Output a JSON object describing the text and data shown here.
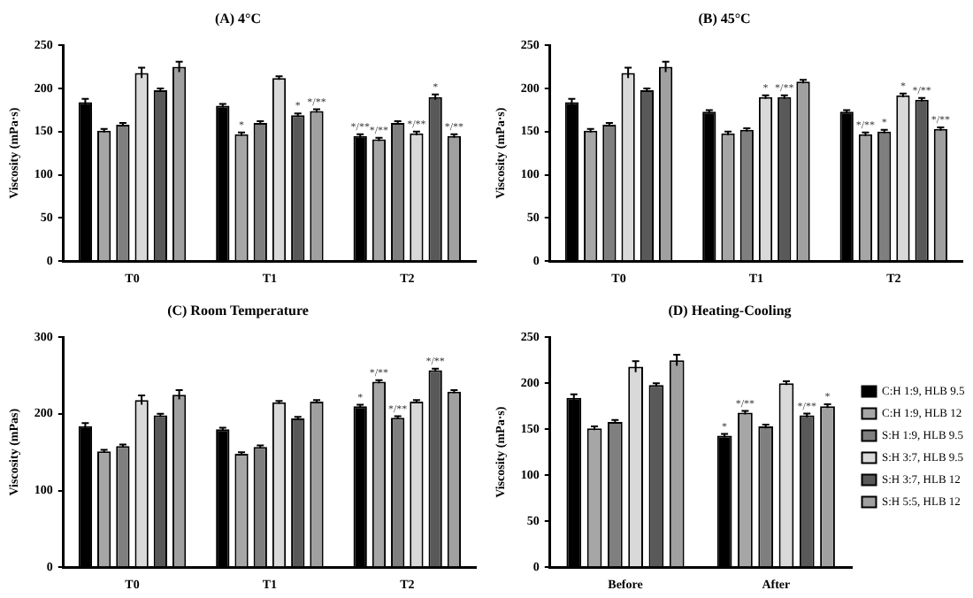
{
  "chart_data": [
    {
      "type": "bar",
      "title": "(A) 4°C",
      "ylabel": "Viscosity (mPa·s)",
      "categories": [
        "T0",
        "T1",
        "T2"
      ],
      "ylim": [
        0,
        250
      ],
      "yticks": [
        0,
        50,
        100,
        150,
        200,
        250
      ],
      "grid": false,
      "legend": false,
      "series": [
        {
          "color": "#000000",
          "values": [
            184,
            180,
            145
          ],
          "errors": [
            4,
            2,
            2
          ],
          "value_labels": [
            null,
            null,
            "*/**"
          ]
        },
        {
          "color": "#a6a6a6",
          "values": [
            151,
            147,
            141
          ],
          "errors": [
            2,
            2,
            2
          ],
          "value_labels": [
            null,
            "*",
            "*/**"
          ]
        },
        {
          "color": "#7f7f7f",
          "values": [
            158,
            160,
            160
          ],
          "errors": [
            2,
            2,
            2
          ],
          "value_labels": [
            null,
            null,
            null
          ]
        },
        {
          "color": "#d9d9d9",
          "values": [
            218,
            212,
            148
          ],
          "errors": [
            6,
            2,
            2
          ],
          "value_labels": [
            null,
            null,
            "*/**"
          ]
        },
        {
          "color": "#595959",
          "values": [
            198,
            169,
            190
          ],
          "errors": [
            2,
            2,
            3
          ],
          "value_labels": [
            null,
            "*",
            "*"
          ]
        },
        {
          "color": "#a0a0a0",
          "values": [
            225,
            174,
            145
          ],
          "errors": [
            6,
            2,
            2
          ],
          "value_labels": [
            null,
            "*/**",
            "*/**"
          ]
        }
      ]
    },
    {
      "type": "bar",
      "title": "(B) 45°C",
      "ylabel": "Viscosity (mPa·s)",
      "categories": [
        "T0",
        "T1",
        "T2"
      ],
      "ylim": [
        0,
        250
      ],
      "yticks": [
        0,
        50,
        100,
        150,
        200,
        250
      ],
      "grid": false,
      "legend": false,
      "series": [
        {
          "color": "#000000",
          "values": [
            184,
            173,
            173
          ],
          "errors": [
            4,
            2,
            2
          ],
          "value_labels": [
            null,
            null,
            null
          ]
        },
        {
          "color": "#a6a6a6",
          "values": [
            151,
            148,
            147
          ],
          "errors": [
            2,
            2,
            2
          ],
          "value_labels": [
            null,
            null,
            "*/**"
          ]
        },
        {
          "color": "#7f7f7f",
          "values": [
            158,
            152,
            150
          ],
          "errors": [
            2,
            2,
            2
          ],
          "value_labels": [
            null,
            null,
            "*"
          ]
        },
        {
          "color": "#d9d9d9",
          "values": [
            218,
            190,
            192
          ],
          "errors": [
            6,
            2,
            2
          ],
          "value_labels": [
            null,
            "*",
            "*"
          ]
        },
        {
          "color": "#595959",
          "values": [
            198,
            190,
            187
          ],
          "errors": [
            2,
            2,
            2
          ],
          "value_labels": [
            null,
            "*/**",
            "*/**"
          ]
        },
        {
          "color": "#a0a0a0",
          "values": [
            225,
            208,
            153
          ],
          "errors": [
            6,
            2,
            2
          ],
          "value_labels": [
            null,
            null,
            "*/**"
          ]
        }
      ]
    },
    {
      "type": "bar",
      "title": "(C) Room Temperature",
      "ylabel": "Viscosity (mPas)",
      "categories": [
        "T0",
        "T1",
        "T2"
      ],
      "ylim": [
        0,
        300
      ],
      "yticks": [
        0,
        100,
        200,
        300
      ],
      "grid": false,
      "legend": false,
      "series": [
        {
          "color": "#000000",
          "values": [
            184,
            180,
            210
          ],
          "errors": [
            4,
            2,
            2
          ],
          "value_labels": [
            null,
            null,
            "*"
          ]
        },
        {
          "color": "#a6a6a6",
          "values": [
            151,
            148,
            242
          ],
          "errors": [
            2,
            2,
            2
          ],
          "value_labels": [
            null,
            null,
            "*/**"
          ]
        },
        {
          "color": "#7f7f7f",
          "values": [
            158,
            157,
            195
          ],
          "errors": [
            2,
            2,
            2
          ],
          "value_labels": [
            null,
            null,
            "*/**"
          ]
        },
        {
          "color": "#d9d9d9",
          "values": [
            218,
            215,
            216
          ],
          "errors": [
            6,
            2,
            2
          ],
          "value_labels": [
            null,
            null,
            null
          ]
        },
        {
          "color": "#595959",
          "values": [
            198,
            194,
            257
          ],
          "errors": [
            2,
            2,
            2
          ],
          "value_labels": [
            null,
            null,
            "*/**"
          ]
        },
        {
          "color": "#a0a0a0",
          "values": [
            225,
            216,
            229
          ],
          "errors": [
            6,
            2,
            2
          ],
          "value_labels": [
            null,
            null,
            null
          ]
        }
      ]
    },
    {
      "type": "bar",
      "title": "(D) Heating-Cooling",
      "ylabel": "Viscosity (mPa·s)",
      "categories": [
        "Before",
        "After"
      ],
      "ylim": [
        0,
        250
      ],
      "yticks": [
        0,
        50,
        100,
        150,
        200,
        250
      ],
      "grid": false,
      "legend": "right",
      "series": [
        {
          "name": "C:H 1:9, HLB 9.5",
          "color": "#000000",
          "values": [
            184,
            143
          ],
          "errors": [
            4,
            2
          ],
          "value_labels": [
            null,
            "*"
          ]
        },
        {
          "name": "C:H 1:9, HLB 12",
          "color": "#a6a6a6",
          "values": [
            151,
            168
          ],
          "errors": [
            2,
            2
          ],
          "value_labels": [
            null,
            "*/**"
          ]
        },
        {
          "name": "S:H 1:9, HLB 9.5",
          "color": "#7f7f7f",
          "values": [
            158,
            153
          ],
          "errors": [
            2,
            2
          ],
          "value_labels": [
            null,
            null
          ]
        },
        {
          "name": "S:H 3:7, HLB 9.5",
          "color": "#d9d9d9",
          "values": [
            218,
            200
          ],
          "errors": [
            6,
            2
          ],
          "value_labels": [
            null,
            null
          ]
        },
        {
          "name": "S:H 3:7, HLB 12",
          "color": "#595959",
          "values": [
            198,
            165
          ],
          "errors": [
            2,
            2
          ],
          "value_labels": [
            null,
            "*/**"
          ]
        },
        {
          "name": "S:H 5:5, HLB 12",
          "color": "#a0a0a0",
          "values": [
            225,
            175
          ],
          "errors": [
            6,
            2
          ],
          "value_labels": [
            null,
            "*"
          ]
        }
      ]
    }
  ]
}
